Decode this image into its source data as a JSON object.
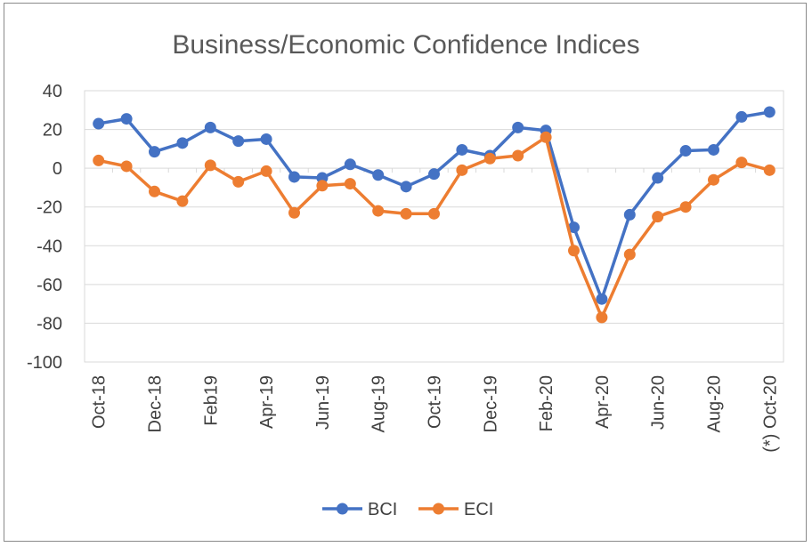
{
  "chart_data": {
    "type": "line",
    "title": "Business/Economic Confidence Indices",
    "xlabel": "",
    "ylabel": "",
    "ylim": [
      -100,
      40
    ],
    "yticks": [
      "40",
      "20",
      "0",
      "-20",
      "-40",
      "-60",
      "-80",
      "-100"
    ],
    "ytick_values": [
      40,
      20,
      0,
      -20,
      -40,
      -60,
      -80,
      -100
    ],
    "x": [
      "Oct-18",
      "Nov-18",
      "Dec-18",
      "Jan-19",
      "Feb-19",
      "Mar-19",
      "Apr-19",
      "May-19",
      "Jun-19",
      "Jul-19",
      "Aug-19",
      "Sep-19",
      "Oct-19",
      "Nov-19",
      "Dec-19",
      "Jan-20",
      "Feb-20",
      "Mar-20",
      "Apr-20",
      "May-20",
      "Jun-20",
      "Jul-20",
      "Aug-20",
      "Sep-20",
      "Oct-20"
    ],
    "xtick_labels": [
      "Oct-18",
      "",
      "Dec-18",
      "",
      "Feb19",
      "",
      "Apr-19",
      "",
      "Jun-19",
      "",
      "Aug-19",
      "",
      "Oct-19",
      "",
      "Dec-19",
      "",
      "Feb-20",
      "",
      "Apr-20",
      "",
      "Jun-20",
      "",
      "Aug-20",
      "",
      "(*) Oct-20"
    ],
    "grid": "horizontal",
    "legend": "bottom",
    "series": [
      {
        "name": "BCI",
        "color": "#4472c4",
        "values": [
          23,
          25.5,
          8.5,
          13,
          21,
          14,
          15,
          -4.5,
          -5,
          2,
          -3.5,
          -9.5,
          -3,
          9.5,
          6.5,
          21,
          19.5,
          -30.5,
          -67.5,
          -24,
          -5,
          9,
          9.5,
          26.5,
          29
        ]
      },
      {
        "name": "ECI",
        "color": "#ed7d31",
        "values": [
          4,
          1,
          -12,
          -17,
          1.5,
          -7,
          -1.5,
          -23,
          -9,
          -8,
          -22,
          -23.5,
          -23.5,
          -1,
          5,
          6.5,
          16,
          -42.5,
          -77,
          -44.5,
          -25,
          -20,
          -6,
          3,
          -1
        ]
      }
    ]
  }
}
